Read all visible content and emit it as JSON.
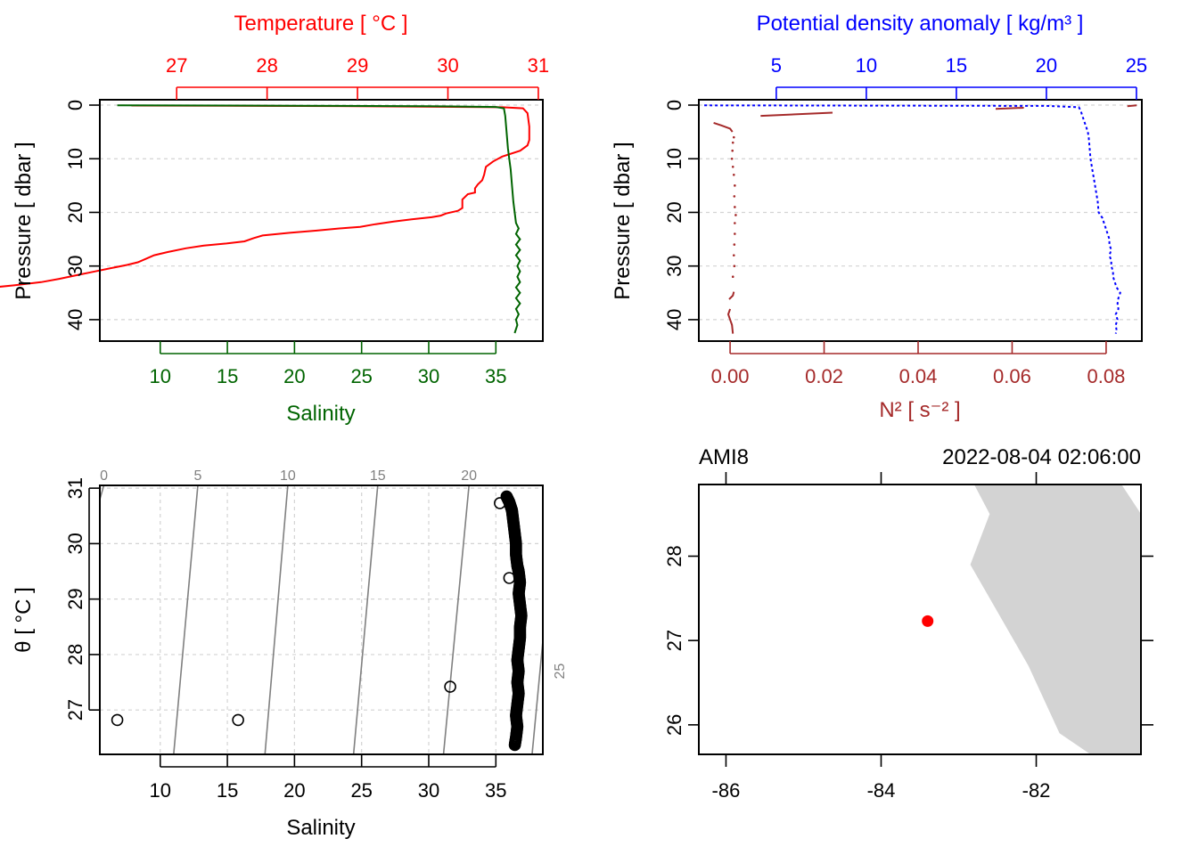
{
  "colors": {
    "temperature": "#ff0000",
    "salinity": "#006400",
    "density": "#0000ff",
    "n2": "#a52a2a",
    "isopycnal": "#808080",
    "land": "#d3d3d3",
    "station": "#ff0000",
    "grid": "#d3d3d3"
  },
  "chart_data": [
    {
      "type": "line",
      "panel": "profile-TS",
      "title": "",
      "x_top_label": "Temperature [ °C ]",
      "x_bottom_label": "Salinity",
      "ylabel": "Pressure [ dbar ]",
      "ylim": [
        44,
        -1
      ],
      "x_top_range": [
        26.15,
        31.05
      ],
      "x_bottom_range": [
        5.5,
        38.5
      ],
      "y_ticks": [
        0,
        10,
        20,
        30,
        40
      ],
      "x_top_ticks": [
        27,
        28,
        29,
        30,
        31
      ],
      "x_bottom_ticks": [
        10,
        15,
        20,
        25,
        30,
        35
      ],
      "grid": true,
      "series": [
        {
          "key": "temperature",
          "axis": "top",
          "points": [
            [
              26.5,
              0.08
            ],
            [
              29.0,
              0.2
            ],
            [
              30.6,
              0.4
            ],
            [
              30.83,
              0.6
            ],
            [
              30.88,
              1.5
            ],
            [
              30.9,
              4.0
            ],
            [
              30.9,
              6.5
            ],
            [
              30.88,
              7.5
            ],
            [
              30.8,
              8.5
            ],
            [
              30.6,
              9.6
            ],
            [
              30.5,
              10.5
            ],
            [
              30.42,
              11.5
            ],
            [
              30.4,
              13.0
            ],
            [
              30.38,
              14.0
            ],
            [
              30.33,
              14.8
            ],
            [
              30.3,
              15.5
            ],
            [
              30.3,
              16.3
            ],
            [
              30.22,
              16.6
            ],
            [
              30.16,
              17.6
            ],
            [
              30.16,
              19.2
            ],
            [
              30.11,
              19.7
            ],
            [
              29.98,
              20.2
            ],
            [
              29.92,
              20.6
            ],
            [
              29.82,
              20.9
            ],
            [
              29.6,
              21.3
            ],
            [
              29.4,
              21.7
            ],
            [
              29.2,
              22.2
            ],
            [
              29.03,
              22.7
            ],
            [
              28.8,
              23.0
            ],
            [
              28.55,
              23.4
            ],
            [
              28.25,
              23.8
            ],
            [
              27.95,
              24.3
            ],
            [
              27.85,
              24.8
            ],
            [
              27.75,
              25.4
            ],
            [
              27.55,
              25.8
            ],
            [
              27.3,
              26.2
            ],
            [
              27.1,
              26.7
            ],
            [
              26.9,
              27.4
            ],
            [
              26.75,
              28.0
            ],
            [
              26.68,
              28.5
            ],
            [
              26.57,
              29.3
            ],
            [
              26.45,
              29.8
            ],
            [
              26.27,
              30.4
            ],
            [
              26.1,
              31.0
            ],
            [
              25.9,
              31.7
            ],
            [
              25.7,
              32.4
            ],
            [
              25.5,
              33.0
            ],
            [
              25.2,
              33.6
            ],
            [
              24.9,
              34.1
            ],
            [
              24.6,
              34.5
            ],
            [
              24.35,
              34.9
            ],
            [
              24.1,
              35.4
            ],
            [
              23.95,
              35.9
            ],
            [
              23.86,
              36.3
            ],
            [
              23.83,
              37.0
            ],
            [
              23.83,
              39.0
            ],
            [
              23.82,
              41.5
            ],
            [
              23.82,
              42.6
            ]
          ]
        },
        {
          "key": "salinity",
          "axis": "bottom",
          "points": [
            [
              6.8,
              0.05
            ],
            [
              20.0,
              0.12
            ],
            [
              30.0,
              0.2
            ],
            [
              35.0,
              0.35
            ],
            [
              35.6,
              0.6
            ],
            [
              35.7,
              2.0
            ],
            [
              35.8,
              5.0
            ],
            [
              35.9,
              8.0
            ],
            [
              36.0,
              10.0
            ],
            [
              36.1,
              12.0
            ],
            [
              36.2,
              15.0
            ],
            [
              36.3,
              18.0
            ],
            [
              36.4,
              20.0
            ],
            [
              36.5,
              22.0
            ],
            [
              36.7,
              23.0
            ],
            [
              36.5,
              24.0
            ],
            [
              36.8,
              25.0
            ],
            [
              36.5,
              26.0
            ],
            [
              36.8,
              27.0
            ],
            [
              36.5,
              28.0
            ],
            [
              36.8,
              29.0
            ],
            [
              36.6,
              30.0
            ],
            [
              36.8,
              31.0
            ],
            [
              36.6,
              32.0
            ],
            [
              36.8,
              33.0
            ],
            [
              36.5,
              34.0
            ],
            [
              36.8,
              35.0
            ],
            [
              36.5,
              36.0
            ],
            [
              36.8,
              37.0
            ],
            [
              36.5,
              38.0
            ],
            [
              36.7,
              39.0
            ],
            [
              36.5,
              40.0
            ],
            [
              36.6,
              41.0
            ],
            [
              36.4,
              42.5
            ]
          ]
        }
      ]
    },
    {
      "type": "line",
      "panel": "profile-density",
      "title": "",
      "x_top_label": "Potential density anomaly [ kg/m³ ]",
      "x_bottom_label": "N² [ s⁻² ]",
      "ylabel": "Pressure [ dbar ]",
      "ylim": [
        44,
        -1
      ],
      "x_top_range": [
        0.7,
        25.3
      ],
      "x_bottom_range": [
        -0.00665,
        0.0876
      ],
      "y_ticks": [
        0,
        10,
        20,
        30,
        40
      ],
      "x_top_ticks": [
        5,
        10,
        15,
        20,
        25
      ],
      "x_bottom_ticks": [
        0.0,
        0.02,
        0.04,
        0.06,
        0.08
      ],
      "x_bottom_tick_labels": [
        "0.00",
        "0.02",
        "0.04",
        "0.06",
        "0.08"
      ],
      "grid": true,
      "series": [
        {
          "key": "density",
          "axis": "top",
          "dashed": true,
          "points": [
            [
              1.0,
              0.05
            ],
            [
              20.0,
              0.15
            ],
            [
              21.8,
              0.4
            ],
            [
              21.9,
              1.0
            ],
            [
              22.0,
              2.0
            ],
            [
              22.1,
              3.0
            ],
            [
              22.2,
              4.0
            ],
            [
              22.3,
              5.0
            ],
            [
              22.35,
              6.0
            ],
            [
              22.4,
              8.0
            ],
            [
              22.45,
              10.0
            ],
            [
              22.55,
              12.0
            ],
            [
              22.65,
              14.0
            ],
            [
              22.75,
              16.0
            ],
            [
              22.85,
              18.0
            ],
            [
              22.9,
              20.0
            ],
            [
              23.1,
              21.0
            ],
            [
              23.2,
              22.0
            ],
            [
              23.3,
              23.0
            ],
            [
              23.4,
              24.0
            ],
            [
              23.5,
              25.0
            ],
            [
              23.5,
              26.0
            ],
            [
              23.6,
              27.0
            ],
            [
              23.5,
              28.0
            ],
            [
              23.6,
              29.0
            ],
            [
              23.6,
              30.0
            ],
            [
              23.7,
              31.0
            ],
            [
              23.7,
              32.0
            ],
            [
              23.8,
              33.0
            ],
            [
              23.9,
              34.0
            ],
            [
              24.1,
              35.0
            ],
            [
              24.0,
              36.0
            ],
            [
              23.95,
              37.0
            ],
            [
              24.0,
              38.0
            ],
            [
              23.85,
              39.0
            ],
            [
              23.95,
              40.0
            ],
            [
              23.85,
              41.0
            ],
            [
              23.9,
              42.0
            ],
            [
              23.85,
              42.6
            ]
          ]
        },
        {
          "key": "n2",
          "axis": "bottom",
          "segments": [
            [
              [
                0.0845,
                0.2
              ],
              [
                0.0865,
                0.05
              ]
            ],
            [
              [
                0.0565,
                0.7
              ],
              [
                0.0625,
                0.5
              ]
            ],
            [
              [
                0.0065,
                2.0
              ],
              [
                0.0218,
                1.4
              ]
            ],
            [
              [
                -0.0035,
                3.3
              ],
              [
                -0.0018,
                3.8
              ],
              [
                0.0,
                4.4
              ],
              [
                0.0005,
                5.0
              ]
            ]
          ],
          "dotted_points": [
            [
              0.0008,
              6.0
            ],
            [
              0.0006,
              7.0
            ],
            [
              0.0005,
              8.5
            ],
            [
              0.0004,
              10.0
            ],
            [
              0.0006,
              11.5
            ],
            [
              0.0008,
              13.0
            ],
            [
              0.001,
              15.0
            ],
            [
              0.0009,
              17.0
            ],
            [
              0.001,
              19.0
            ],
            [
              0.0012,
              20.5
            ],
            [
              0.001,
              22.0
            ],
            [
              0.001,
              24.0
            ],
            [
              0.0009,
              26.0
            ],
            [
              0.0008,
              28.0
            ],
            [
              0.0009,
              30.0
            ],
            [
              0.0006,
              32.0
            ]
          ],
          "bottom_segments": [
            [
              [
                0.0008,
                34.8
              ],
              [
                0.0006,
                35.5
              ],
              [
                -0.0002,
                36.2
              ]
            ],
            [
              [
                0.0,
                38.0
              ],
              [
                -0.0004,
                39.0
              ],
              [
                0.0,
                40.0
              ],
              [
                0.0004,
                41.0
              ],
              [
                0.0006,
                42.6
              ]
            ]
          ]
        }
      ]
    },
    {
      "type": "scatter",
      "panel": "ts-diagram",
      "title": "",
      "xlabel": "Salinity",
      "ylabel": "θ [ °C ]",
      "xlim": [
        5.5,
        38.5
      ],
      "ylim": [
        26.2,
        31.05
      ],
      "x_ticks": [
        10,
        15,
        20,
        25,
        30,
        35
      ],
      "y_ticks": [
        27,
        28,
        29,
        30,
        31
      ],
      "grid": true,
      "isopycnals": [
        {
          "label": "0",
          "s_top": 5.8,
          "s_bottom": 0.0,
          "label_pos": "top"
        },
        {
          "label": "5",
          "s_top": 12.8,
          "s_bottom": 11.0,
          "label_pos": "top"
        },
        {
          "label": "10",
          "s_top": 19.5,
          "s_bottom": 17.8,
          "label_pos": "top"
        },
        {
          "label": "15",
          "s_top": 26.2,
          "s_bottom": 24.4,
          "label_pos": "top"
        },
        {
          "label": "20",
          "s_top": 33.0,
          "s_bottom": 31.1,
          "label_pos": "top"
        },
        {
          "label": "25",
          "s_top": 39.6,
          "s_bottom": 37.7,
          "label_pos": "right"
        }
      ],
      "outliers": [
        [
          6.8,
          26.82
        ],
        [
          15.8,
          26.82
        ],
        [
          31.6,
          27.42
        ],
        [
          35.3,
          30.73
        ],
        [
          36.0,
          29.38
        ]
      ],
      "main_column": [
        [
          35.8,
          30.85
        ],
        [
          36.0,
          30.75
        ],
        [
          36.2,
          30.6
        ],
        [
          36.3,
          30.4
        ],
        [
          36.4,
          30.2
        ],
        [
          36.5,
          30.0
        ],
        [
          36.5,
          29.8
        ],
        [
          36.6,
          29.6
        ],
        [
          36.7,
          29.5
        ],
        [
          36.8,
          29.3
        ],
        [
          36.7,
          29.1
        ],
        [
          36.8,
          28.9
        ],
        [
          36.9,
          28.7
        ],
        [
          36.8,
          28.5
        ],
        [
          36.8,
          28.3
        ],
        [
          36.7,
          28.1
        ],
        [
          36.6,
          27.9
        ],
        [
          36.7,
          27.7
        ],
        [
          36.6,
          27.5
        ],
        [
          36.7,
          27.3
        ],
        [
          36.6,
          27.1
        ],
        [
          36.5,
          26.9
        ],
        [
          36.6,
          26.7
        ],
        [
          36.5,
          26.5
        ],
        [
          36.4,
          26.35
        ]
      ]
    },
    {
      "type": "map",
      "panel": "station-map",
      "station_label": "AMI8",
      "datetime_label": "2022-08-04 02:06:00",
      "xlim": [
        -86.35,
        -80.65
      ],
      "ylim": [
        25.65,
        28.85
      ],
      "x_ticks": [
        -86,
        -84,
        -82
      ],
      "x_tick_labels": [
        "-86",
        "-84",
        "-82"
      ],
      "y_ticks": [
        26,
        27,
        28
      ],
      "station": {
        "lon": -83.4,
        "lat": 27.23
      },
      "land": [
        [
          -82.8,
          28.85
        ],
        [
          -82.6,
          28.5
        ],
        [
          -82.85,
          27.9
        ],
        [
          -82.6,
          27.5
        ],
        [
          -82.1,
          26.7
        ],
        [
          -81.7,
          25.9
        ],
        [
          -81.3,
          25.65
        ],
        [
          -80.65,
          25.65
        ],
        [
          -80.65,
          28.5
        ],
        [
          -80.9,
          28.85
        ]
      ]
    }
  ]
}
